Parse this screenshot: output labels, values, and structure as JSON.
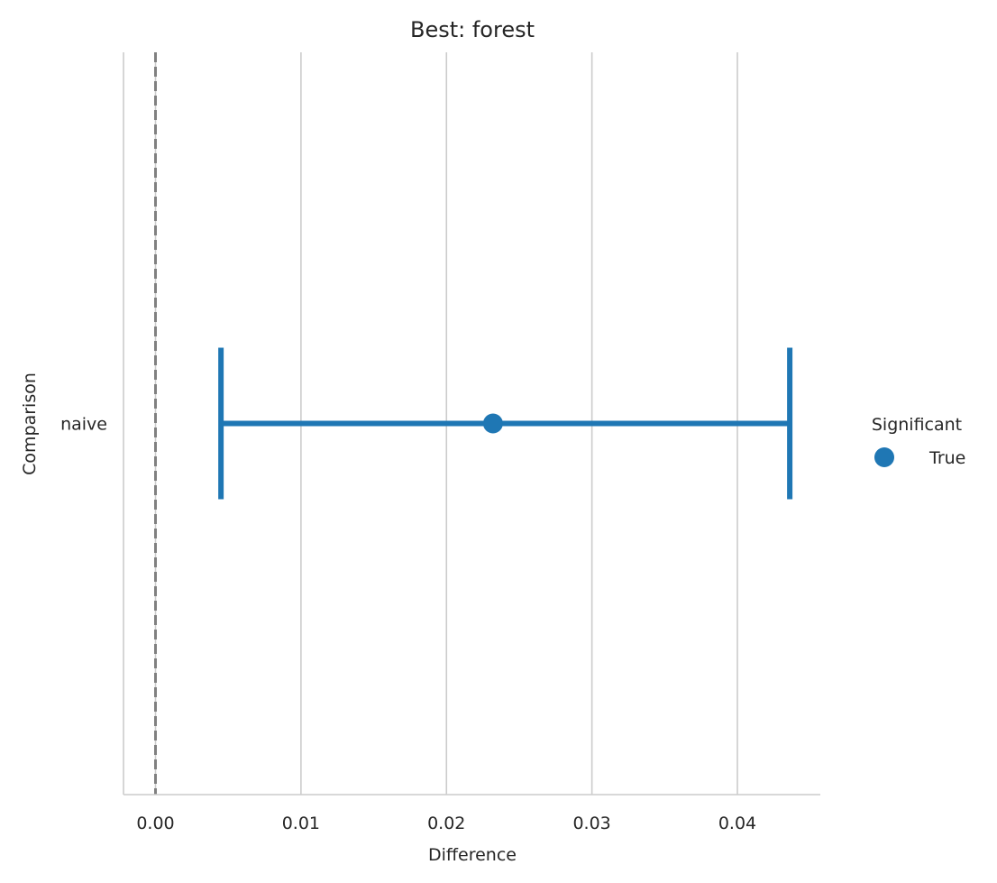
{
  "chart_data": {
    "type": "scatter",
    "title": "Best: forest",
    "xlabel": "Difference",
    "ylabel": "Comparison",
    "xlim": [
      -0.0022,
      0.0457
    ],
    "xticks": [
      0.0,
      0.01,
      0.02,
      0.03,
      0.04
    ],
    "xtick_labels": [
      "0.00",
      "0.01",
      "0.02",
      "0.03",
      "0.04"
    ],
    "categories": [
      "naive"
    ],
    "grid": "vertical",
    "reference_line": {
      "x": 0.0,
      "style": "dashed",
      "color": "#808080"
    },
    "points": [
      {
        "category": "naive",
        "value": 0.0232,
        "ci_low": 0.0045,
        "ci_high": 0.0436,
        "significant": "True"
      }
    ],
    "legend": {
      "title": "Significant",
      "placement": "right",
      "entries": [
        {
          "label": "True",
          "color": "#1f77b4"
        }
      ]
    },
    "colors": {
      "point": "#1f77b4",
      "grid": "#cccccc",
      "axis": "#cccccc"
    }
  }
}
